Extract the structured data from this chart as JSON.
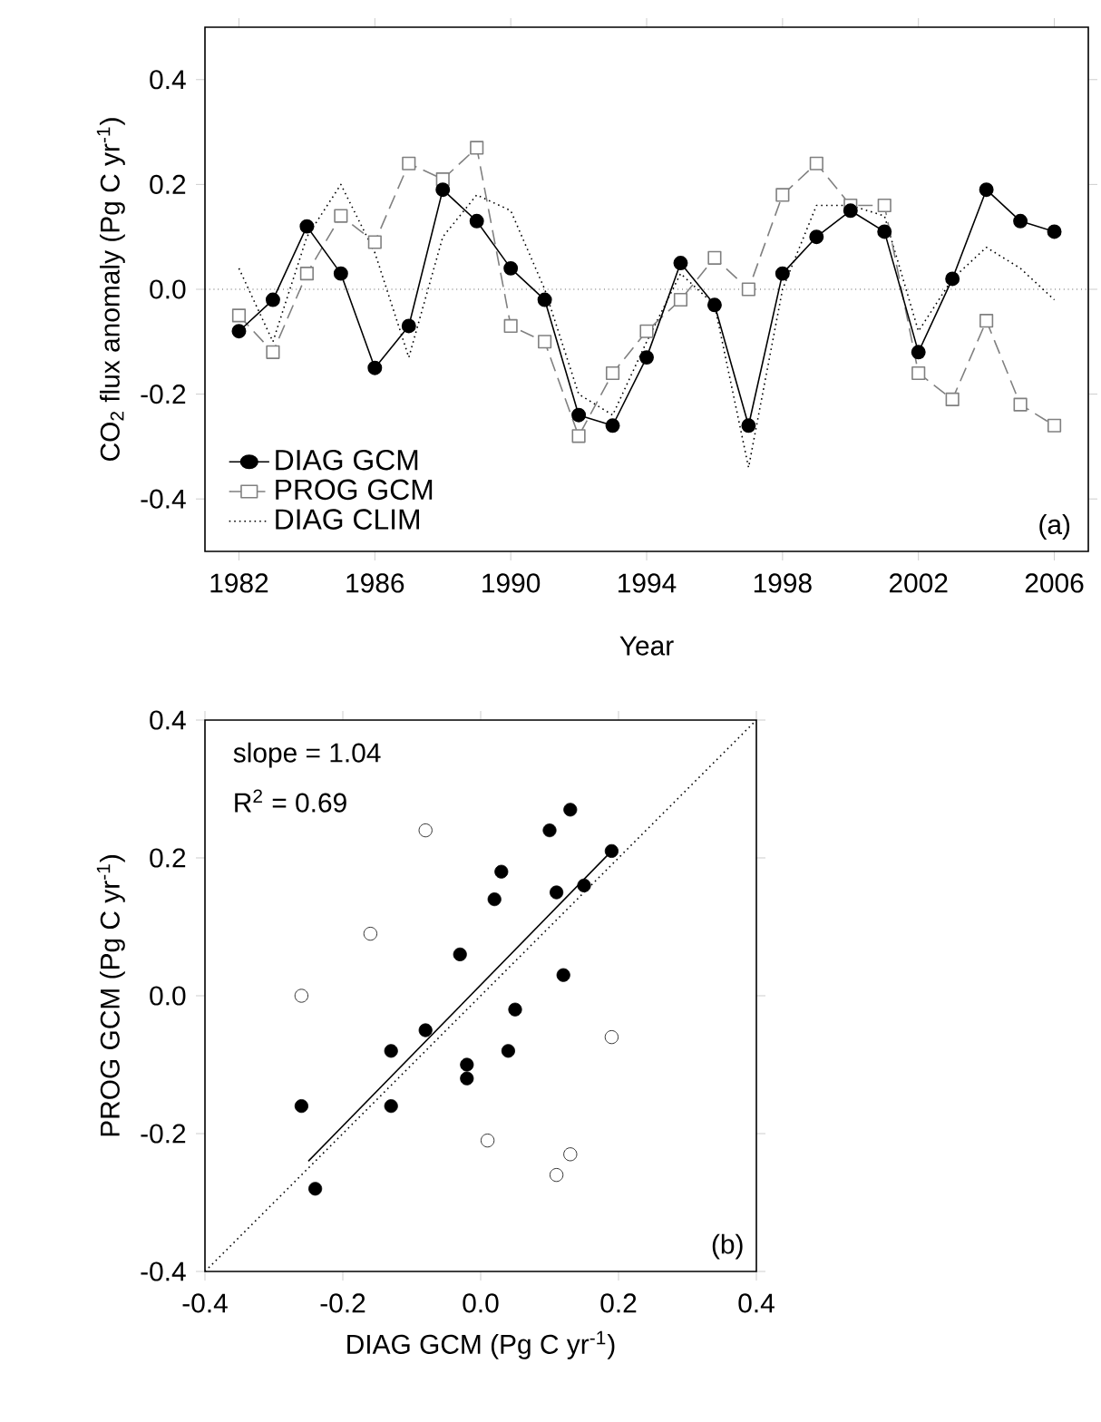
{
  "chart_data": [
    {
      "type": "line",
      "xlabel": "Year",
      "ylabel": "CO$_{2}$ flux anomaly (Pg C yr$^{-1}$)",
      "x": [
        1982,
        1983,
        1984,
        1985,
        1986,
        1987,
        1988,
        1989,
        1990,
        1991,
        1992,
        1993,
        1994,
        1995,
        1996,
        1997,
        1998,
        1999,
        2000,
        2001,
        2002,
        2003,
        2004,
        2005,
        2006
      ],
      "series": [
        {
          "name": "DIAG GCM",
          "color": "#000000",
          "marker": "circle",
          "line_style": "solid",
          "values": [
            -0.08,
            -0.02,
            0.12,
            0.03,
            -0.15,
            -0.07,
            0.19,
            0.13,
            0.04,
            -0.02,
            -0.24,
            -0.26,
            -0.13,
            0.05,
            -0.03,
            -0.26,
            0.03,
            0.1,
            0.15,
            0.11,
            -0.12,
            0.02,
            0.19,
            0.13,
            0.11
          ]
        },
        {
          "name": "PROG GCM",
          "color": "#808080",
          "marker": "square",
          "line_style": "dashed",
          "values": [
            -0.05,
            -0.12,
            0.03,
            0.14,
            0.09,
            0.24,
            0.21,
            0.27,
            -0.07,
            -0.1,
            -0.28,
            -0.16,
            -0.08,
            -0.02,
            0.06,
            0.0,
            0.18,
            0.24,
            0.16,
            0.16,
            -0.16,
            -0.21,
            -0.06,
            -0.22,
            -0.26
          ]
        },
        {
          "name": "DIAG CLIM",
          "color": "#000000",
          "marker": "none",
          "line_style": "dotted",
          "values": [
            0.04,
            -0.1,
            0.1,
            0.2,
            0.07,
            -0.13,
            0.1,
            0.18,
            0.15,
            0.0,
            -0.2,
            -0.24,
            -0.1,
            0.03,
            -0.03,
            -0.34,
            0.0,
            0.16,
            0.16,
            0.14,
            -0.08,
            0.02,
            0.08,
            0.04,
            -0.02
          ]
        }
      ],
      "xlim": [
        1981,
        2007
      ],
      "ylim": [
        -0.5,
        0.5
      ],
      "xticks": [
        1982,
        1986,
        1990,
        1994,
        1998,
        2002,
        2006
      ],
      "yticks": [
        -0.4,
        -0.2,
        {
          "value": 0,
          "label": "0.0"
        },
        0.2,
        0.4
      ],
      "ref_lines": [
        {
          "axis": "y",
          "value": 0,
          "color": "#000000",
          "line_style": "dotted"
        }
      ],
      "legend": "bottom left",
      "annotations": [
        "(a)"
      ]
    },
    {
      "type": "scatter",
      "xlabel": "DIAG GCM (Pg C yr$^{-1}$)",
      "ylabel": "PROG GCM (Pg C yr$^{-1}$)",
      "series": [
        {
          "color": "#000000",
          "marker": "circle",
          "x": [
            -0.26,
            -0.24,
            -0.13,
            -0.13,
            -0.08,
            -0.03,
            -0.02,
            -0.02,
            0.03,
            0.02,
            0.04,
            0.05,
            0.1,
            0.13,
            0.11,
            0.15,
            0.12,
            0.19
          ],
          "values": [
            -0.16,
            -0.28,
            -0.08,
            -0.16,
            -0.05,
            0.06,
            -0.1,
            -0.12,
            0.18,
            0.14,
            -0.08,
            -0.02,
            0.24,
            0.27,
            0.15,
            0.16,
            0.03,
            0.21
          ]
        },
        {
          "color": "#ffffff",
          "marker": "circle",
          "x": [
            -0.26,
            -0.16,
            -0.08,
            0.01,
            0.11,
            0.13,
            0.19
          ],
          "values": [
            0.0,
            0.09,
            0.24,
            -0.21,
            -0.26,
            -0.23,
            -0.06
          ]
        },
        {
          "type": "line",
          "color": "#000000",
          "line_style": "solid",
          "marker": "none",
          "x": [
            -0.25,
            0.19
          ],
          "values": [
            -0.24,
            0.21
          ]
        },
        {
          "type": "line",
          "color": "#000000",
          "line_style": "dotted",
          "marker": "none",
          "x": [
            -0.4,
            0.4
          ],
          "values": [
            -0.4,
            0.4
          ]
        }
      ],
      "xlim": [
        -0.4,
        0.4
      ],
      "ylim": [
        -0.4,
        0.4
      ],
      "xticks": [
        -0.4,
        -0.2,
        {
          "value": 0,
          "label": "0.0"
        },
        0.2,
        0.4
      ],
      "yticks": [
        -0.4,
        -0.2,
        {
          "value": 0,
          "label": "0.0"
        },
        0.2,
        0.4
      ],
      "annotations": [
        "slope = 1.04",
        "R$^{2}$ = 0.69",
        "(b)"
      ]
    }
  ]
}
